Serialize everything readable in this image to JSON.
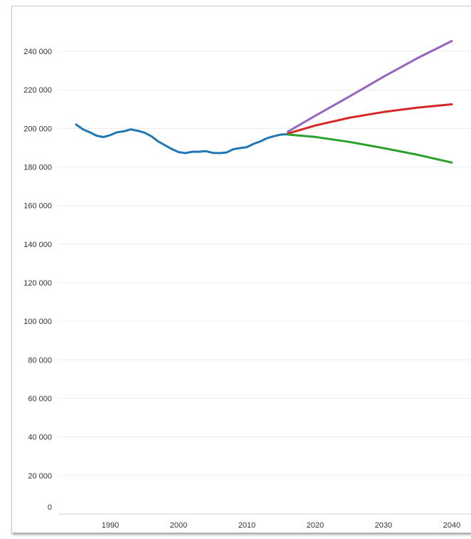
{
  "chart_data": {
    "type": "line",
    "title": "",
    "xlabel": "",
    "ylabel": "",
    "xlim": [
      1983,
      2042
    ],
    "ylim": [
      0,
      250000
    ],
    "y_ticks": [
      0,
      20000,
      40000,
      60000,
      80000,
      100000,
      120000,
      140000,
      160000,
      180000,
      200000,
      220000,
      240000
    ],
    "y_tick_labels": [
      "0",
      "20 000",
      "40 000",
      "60 000",
      "80 000",
      "100 000",
      "120 000",
      "140 000",
      "160 000",
      "180 000",
      "200 000",
      "220 000",
      "240 000"
    ],
    "x_ticks": [
      1990,
      2000,
      2010,
      2020,
      2030,
      2040
    ],
    "x_tick_labels": [
      "1990",
      "2000",
      "2010",
      "2020",
      "2030",
      "2040"
    ],
    "grid": "horizontal",
    "legend": "none",
    "series": [
      {
        "color": "#1f77b4",
        "x": [
          1985,
          1986,
          1987,
          1988,
          1989,
          1990,
          1991,
          1992,
          1993,
          1994,
          1995,
          1996,
          1997,
          1998,
          1999,
          2000,
          2001,
          2002,
          2003,
          2004,
          2005,
          2006,
          2007,
          2008,
          2009,
          2010,
          2011,
          2012,
          2013,
          2014,
          2015,
          2016
        ],
        "values": [
          202000,
          199500,
          198000,
          196200,
          195500,
          196500,
          198000,
          198500,
          199500,
          198800,
          197800,
          196000,
          193300,
          191300,
          189300,
          187700,
          187200,
          187900,
          187900,
          188200,
          187300,
          187200,
          187500,
          189200,
          189800,
          190300,
          192000,
          193300,
          195000,
          196000,
          196800,
          197000
        ]
      },
      {
        "color": "#9467bd",
        "x": [
          2016,
          2020,
          2025,
          2030,
          2035,
          2040
        ],
        "values": [
          198300,
          206500,
          216500,
          226800,
          236500,
          245300
        ]
      },
      {
        "color": "#d62728",
        "x": [
          2016,
          2020,
          2025,
          2030,
          2035,
          2040
        ],
        "values": [
          197300,
          201500,
          205500,
          208500,
          210800,
          212500
        ]
      },
      {
        "color": "#2ca02c",
        "x": [
          2016,
          2020,
          2025,
          2030,
          2035,
          2040
        ],
        "values": [
          196800,
          195600,
          193000,
          189800,
          186300,
          182300
        ]
      }
    ]
  }
}
